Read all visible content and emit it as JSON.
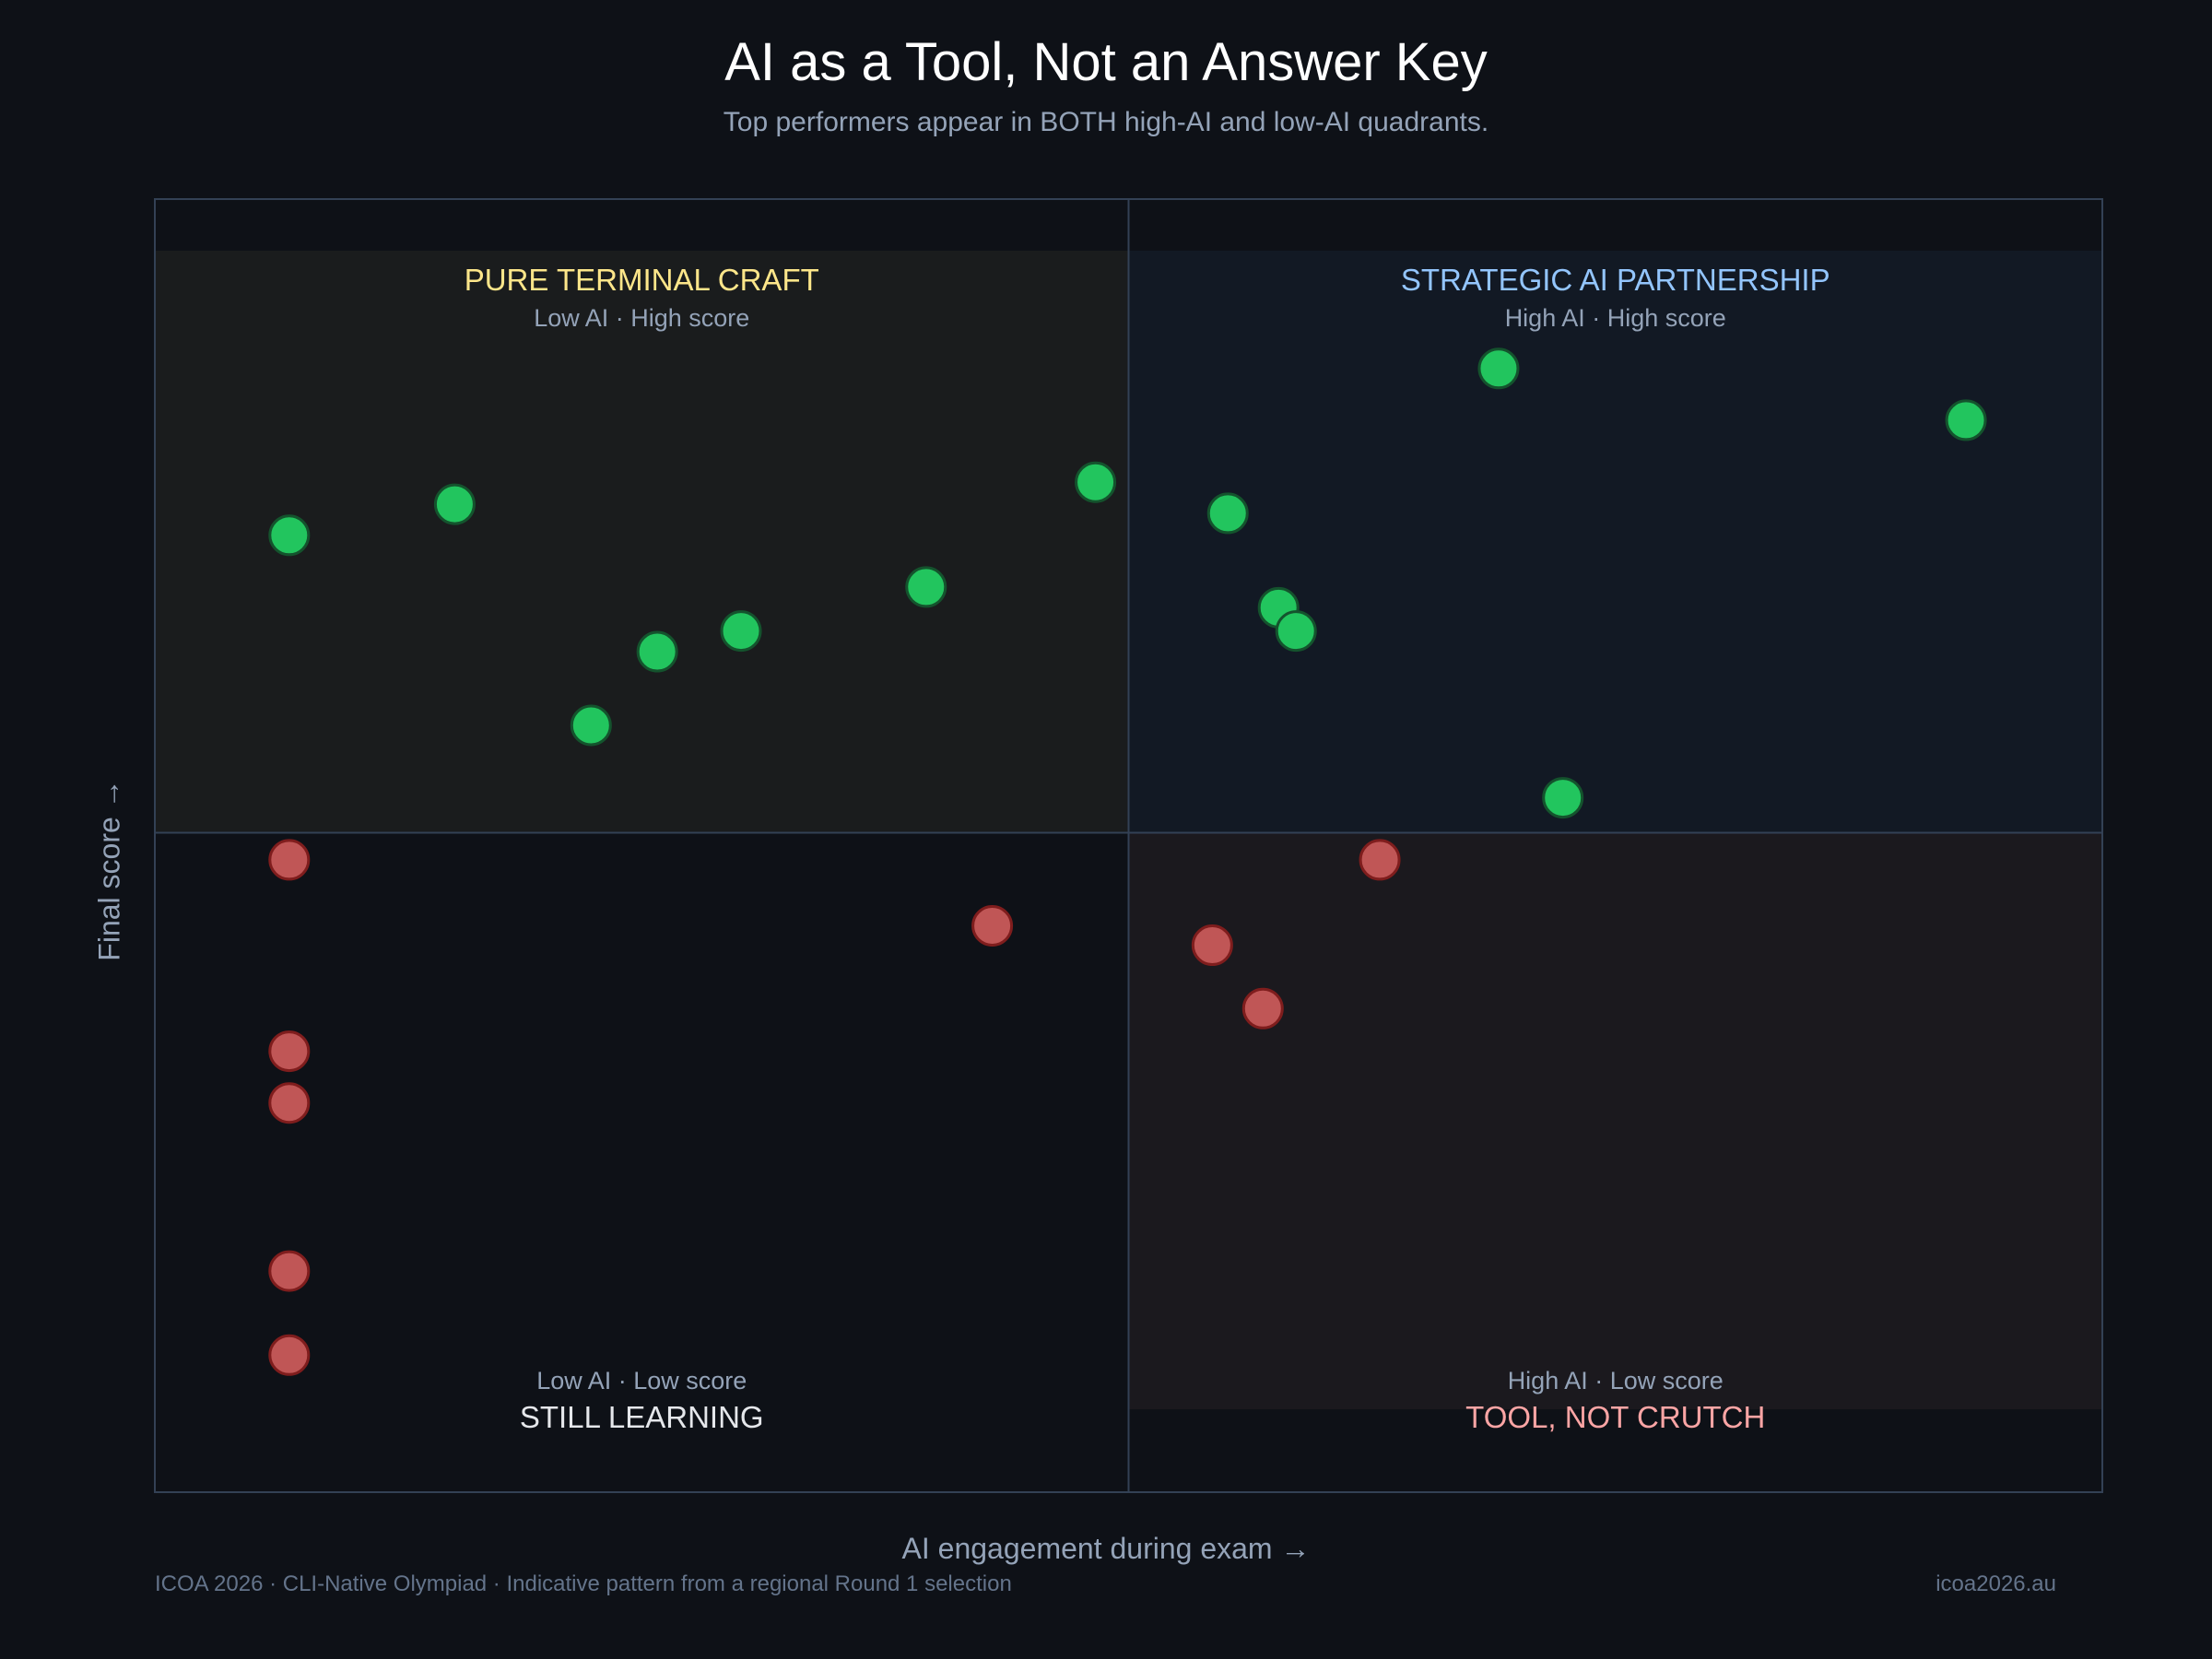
{
  "header": {
    "title": "AI as a Tool, Not an Answer Key",
    "subtitle": "Top performers appear in BOTH high-AI and low-AI quadrants."
  },
  "footer": {
    "left": "ICOA 2026  ·  CLI-Native Olympiad  ·  Indicative pattern from a regional Round 1 selection",
    "right": "icoa2026.au"
  },
  "chart_data": {
    "type": "scatter",
    "title": "AI as a Tool, Not an Answer Key",
    "xlabel": "AI engagement during exam →",
    "ylabel": "Final score →",
    "xlim": [
      0,
      100
    ],
    "ylim": [
      0,
      100
    ],
    "thresholds": {
      "x": 50,
      "y": 51
    },
    "grid": false,
    "quadrants": [
      {
        "id": "top-left",
        "title": "PURE TERMINAL CRAFT",
        "subtitle": "Low AI · High score",
        "title_color": "#fde68a",
        "fill": "#1a1c1d"
      },
      {
        "id": "top-right",
        "title": "STRATEGIC AI PARTNERSHIP",
        "subtitle": "High AI · High score",
        "title_color": "#93c5fd",
        "fill": "#121924"
      },
      {
        "id": "bottom-left",
        "title": "STILL LEARNING",
        "subtitle": "Low AI · Low score",
        "title_color": "#e5e7eb",
        "fill": "#0e1117"
      },
      {
        "id": "bottom-right",
        "title": "TOOL, NOT CRUTCH",
        "subtitle": "High AI · Low score",
        "title_color": "#fca5a5",
        "fill": "#1b191e"
      }
    ],
    "series": [
      {
        "color": "#22c55e",
        "points": [
          [
            6.9,
            74.0
          ],
          [
            15.4,
            76.4
          ],
          [
            22.4,
            59.3
          ],
          [
            25.8,
            65.0
          ],
          [
            30.1,
            66.6
          ],
          [
            39.6,
            70.0
          ],
          [
            48.3,
            78.1
          ],
          [
            55.1,
            75.7
          ],
          [
            57.7,
            68.4
          ],
          [
            58.6,
            66.6
          ],
          [
            69.0,
            86.9
          ],
          [
            72.3,
            53.7
          ],
          [
            93.0,
            82.9
          ]
        ]
      },
      {
        "color": "#c05656",
        "points": [
          [
            6.9,
            48.9
          ],
          [
            6.9,
            34.1
          ],
          [
            6.9,
            30.1
          ],
          [
            6.9,
            17.1
          ],
          [
            6.9,
            10.6
          ],
          [
            43.0,
            43.8
          ],
          [
            62.9,
            48.9
          ],
          [
            54.3,
            42.3
          ],
          [
            56.9,
            37.4
          ]
        ]
      }
    ]
  }
}
